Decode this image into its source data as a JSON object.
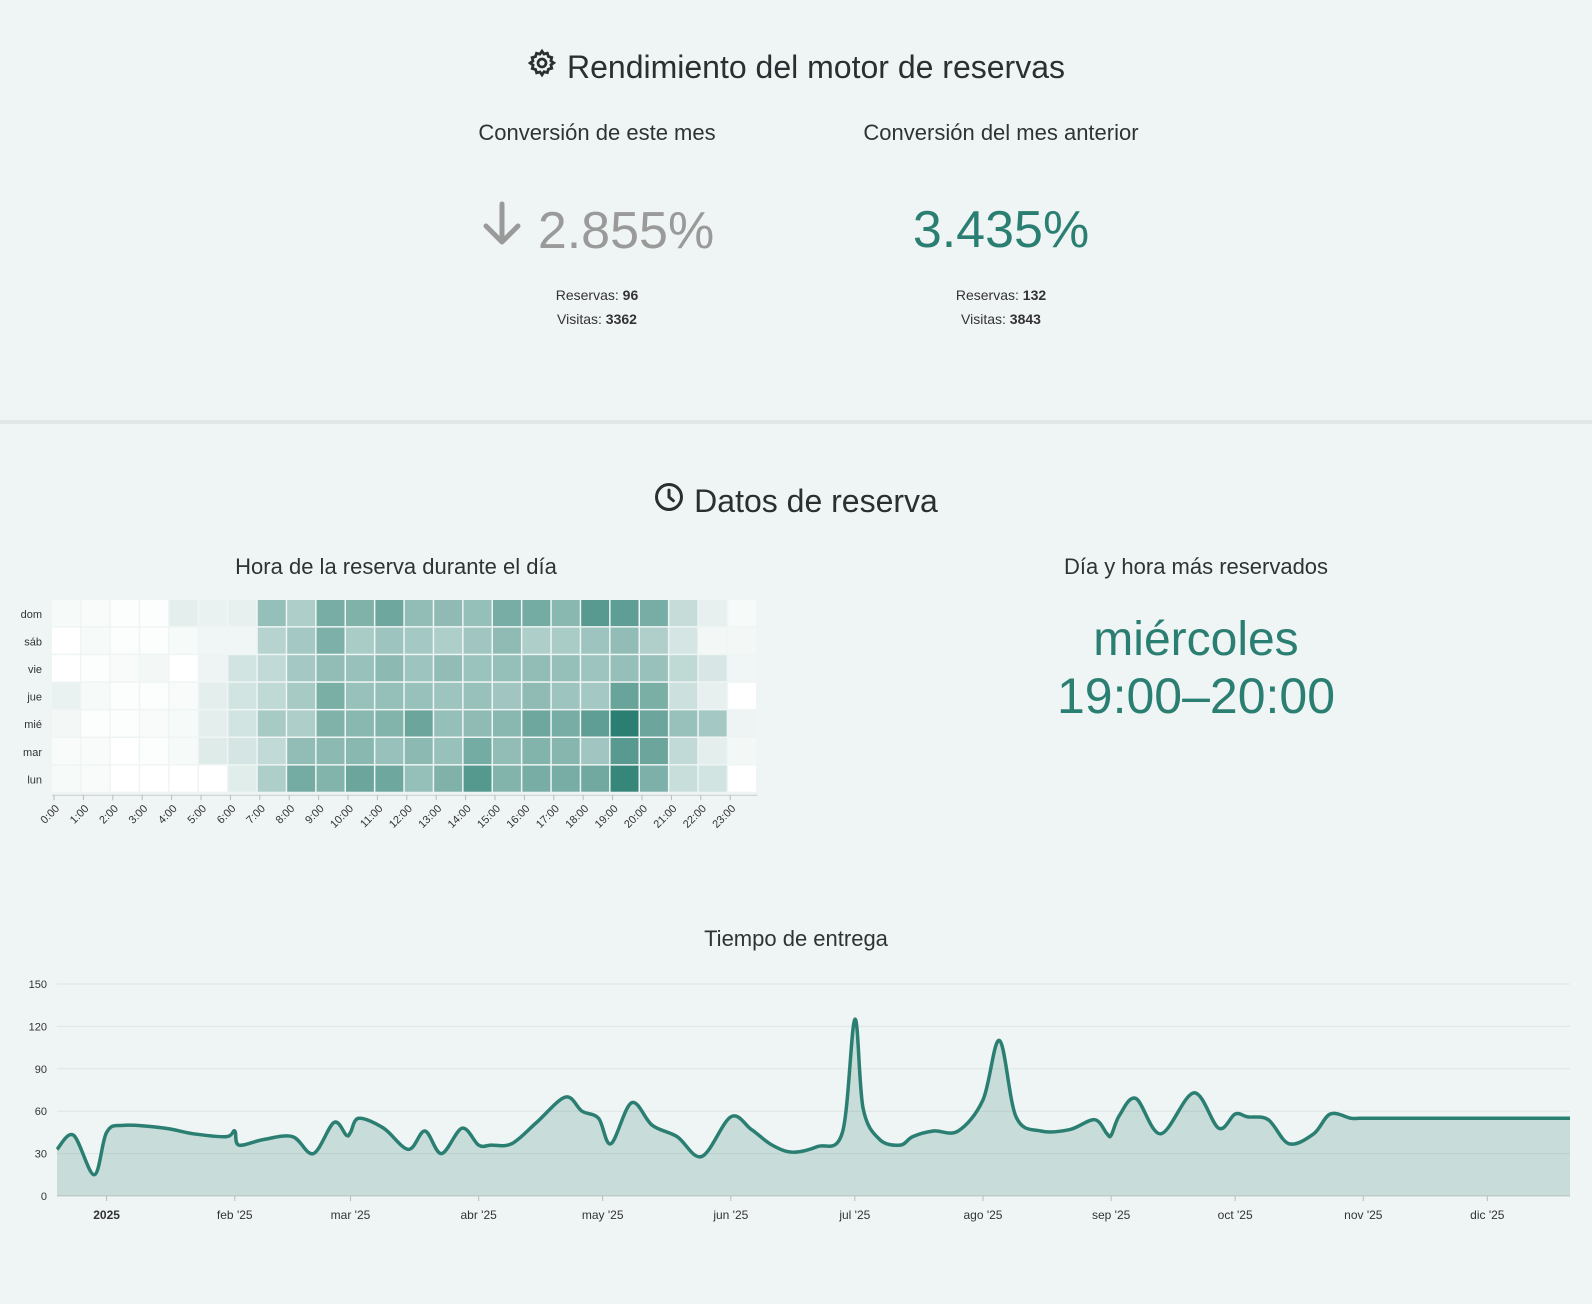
{
  "performance": {
    "title": "Rendimiento del motor de reservas",
    "current": {
      "title": "Conversión de este mes",
      "value": "2.855%",
      "reservas_label": "Reservas:",
      "reservas": "96",
      "visitas_label": "Visitas:",
      "visitas": "3362"
    },
    "previous": {
      "title": "Conversión del mes anterior",
      "value": "3.435%",
      "reservas_label": "Reservas:",
      "reservas": "132",
      "visitas_label": "Visitas:",
      "visitas": "3843"
    }
  },
  "booking": {
    "title": "Datos de reserva",
    "heatmap_title": "Hora de la reserva durante el día",
    "top_title": "Día y hora más reservados",
    "top_day": "miércoles",
    "top_hour": "19:00–20:00"
  },
  "colors": {
    "accent": "#2b7f72",
    "muted": "#9a9a9a"
  },
  "chart_data": [
    {
      "type": "heatmap",
      "title": "Hora de la reserva durante el día",
      "rows": [
        "dom",
        "sáb",
        "vie",
        "jue",
        "mié",
        "mar",
        "lun"
      ],
      "columns": [
        "0:00",
        "1:00",
        "2:00",
        "3:00",
        "4:00",
        "5:00",
        "6:00",
        "7:00",
        "8:00",
        "9:00",
        "10:00",
        "11:00",
        "12:00",
        "13:00",
        "14:00",
        "15:00",
        "16:00",
        "17:00",
        "18:00",
        "19:00",
        "20:00",
        "21:00",
        "22:00",
        "23:00"
      ],
      "values": [
        [
          3,
          2,
          1,
          1,
          9,
          7,
          8,
          35,
          27,
          45,
          42,
          48,
          36,
          37,
          35,
          45,
          46,
          39,
          55,
          53,
          45,
          19,
          8,
          3
        ],
        [
          0,
          3,
          1,
          1,
          3,
          5,
          5,
          24,
          30,
          43,
          28,
          32,
          30,
          27,
          31,
          37,
          27,
          28,
          32,
          36,
          26,
          14,
          4,
          4
        ],
        [
          0,
          1,
          2,
          4,
          0,
          6,
          15,
          20,
          30,
          36,
          34,
          38,
          32,
          36,
          33,
          35,
          36,
          35,
          32,
          35,
          34,
          21,
          13,
          5
        ],
        [
          7,
          3,
          1,
          1,
          2,
          9,
          15,
          21,
          29,
          44,
          34,
          35,
          34,
          32,
          34,
          31,
          37,
          32,
          30,
          50,
          44,
          17,
          8,
          0
        ],
        [
          4,
          1,
          1,
          2,
          3,
          9,
          15,
          29,
          27,
          42,
          39,
          41,
          49,
          35,
          37,
          39,
          48,
          45,
          53,
          70,
          49,
          34,
          30,
          6
        ],
        [
          2,
          2,
          0,
          1,
          3,
          11,
          14,
          20,
          36,
          38,
          39,
          34,
          38,
          34,
          46,
          36,
          41,
          40,
          31,
          55,
          49,
          20,
          9,
          4
        ],
        [
          3,
          2,
          0,
          0,
          0,
          0,
          10,
          27,
          46,
          41,
          49,
          48,
          35,
          42,
          56,
          41,
          45,
          45,
          47,
          66,
          43,
          18,
          15,
          0
        ]
      ]
    },
    {
      "type": "area",
      "title": "Tiempo de entrega",
      "x_ticks": [
        "2025",
        "feb '25",
        "mar '25",
        "abr '25",
        "may '25",
        "jun '25",
        "jul '25",
        "ago '25",
        "sep '25",
        "oct '25",
        "nov '25",
        "dic '25"
      ],
      "ylim": [
        0,
        150
      ],
      "y_ticks": [
        0,
        30,
        60,
        90,
        120,
        150
      ],
      "x": [
        "2024-12-20",
        "2024-12-24",
        "2024-12-29",
        "2025-01-01",
        "2025-01-05",
        "2025-01-15",
        "2025-01-22",
        "2025-01-30",
        "2025-02-01",
        "2025-02-02",
        "2025-02-08",
        "2025-02-15",
        "2025-02-20",
        "2025-02-25",
        "2025-02-28",
        "2025-03-01",
        "2025-03-03",
        "2025-03-09",
        "2025-03-15",
        "2025-03-19",
        "2025-03-23",
        "2025-03-28",
        "2025-04-01",
        "2025-04-04",
        "2025-04-09",
        "2025-04-15",
        "2025-04-22",
        "2025-04-26",
        "2025-04-30",
        "2025-05-03",
        "2025-05-08",
        "2025-05-13",
        "2025-05-19",
        "2025-05-25",
        "2025-06-01",
        "2025-06-06",
        "2025-06-11",
        "2025-06-16",
        "2025-06-22",
        "2025-06-28",
        "2025-07-01",
        "2025-07-03",
        "2025-07-07",
        "2025-07-12",
        "2025-07-15",
        "2025-07-20",
        "2025-07-26",
        "2025-08-01",
        "2025-08-05",
        "2025-08-09",
        "2025-08-15",
        "2025-08-22",
        "2025-08-28",
        "2025-08-31",
        "2025-09-01",
        "2025-09-03",
        "2025-09-07",
        "2025-09-13",
        "2025-09-21",
        "2025-09-27",
        "2025-10-01",
        "2025-10-04",
        "2025-10-09",
        "2025-10-14",
        "2025-10-20",
        "2025-10-24",
        "2025-10-29",
        "2025-10-31",
        "2025-11-01",
        "2025-11-04",
        "2025-11-09",
        "2025-11-15",
        "2025-11-22",
        "2025-11-25",
        "2025-11-30",
        "2025-12-01",
        "2025-12-06",
        "2025-12-11",
        "2025-12-16",
        "2025-12-21"
      ],
      "y": [
        33,
        43,
        15,
        45,
        50,
        48,
        44,
        42,
        46,
        36,
        40,
        42,
        30,
        52,
        43,
        45,
        55,
        48,
        33,
        46,
        30,
        48,
        36,
        36,
        37,
        52,
        70,
        60,
        55,
        37,
        66,
        50,
        42,
        28,
        56,
        47,
        36,
        31,
        35,
        45,
        125,
        62,
        40,
        36,
        42,
        46,
        46,
        68,
        110,
        56,
        46,
        47,
        54,
        44,
        43,
        57,
        69,
        44,
        73,
        48,
        58,
        56,
        54,
        37,
        44,
        58,
        55,
        55,
        55,
        55,
        55,
        55,
        55,
        55,
        55,
        55,
        55,
        55,
        55,
        55
      ]
    }
  ]
}
